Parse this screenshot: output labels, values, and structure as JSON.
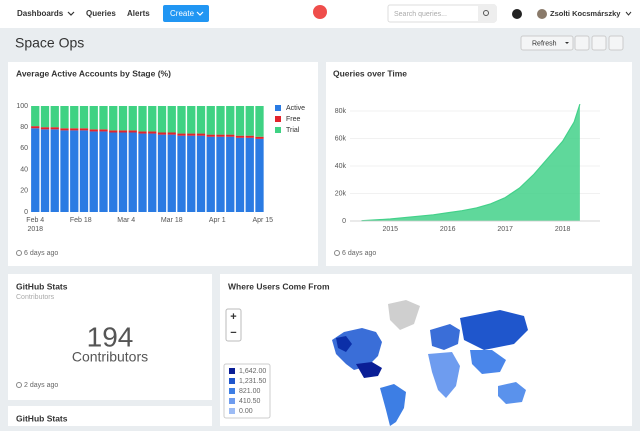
{
  "nav": {
    "items": [
      "Dashboards",
      "Queries",
      "Alerts"
    ],
    "create": "Create",
    "search_placeholder": "Search queries...",
    "user": "Zsolti Kocsmárszky"
  },
  "dashboard": {
    "title": "Space Ops",
    "refresh": "Refresh"
  },
  "chart_data": [
    {
      "type": "bar",
      "stacked": true,
      "title": "Average Active Accounts by Stage (%)",
      "x": [
        "2018-02-04",
        "2018-02-07",
        "2018-02-10",
        "2018-02-13",
        "2018-02-16",
        "2018-02-19",
        "2018-02-22",
        "2018-02-25",
        "2018-02-28",
        "2018-03-03",
        "2018-03-06",
        "2018-03-09",
        "2018-03-12",
        "2018-03-15",
        "2018-03-18",
        "2018-03-21",
        "2018-03-24",
        "2018-03-27",
        "2018-03-30",
        "2018-04-02",
        "2018-04-05",
        "2018-04-08",
        "2018-04-11",
        "2018-04-14"
      ],
      "series": [
        {
          "name": "Active",
          "color": "#2a7be3",
          "values": [
            79,
            78,
            78,
            77,
            77,
            77,
            76,
            76,
            75,
            75,
            75,
            74,
            74,
            73,
            73,
            72,
            72,
            72,
            71,
            71,
            71,
            70,
            70,
            69
          ]
        },
        {
          "name": "Free",
          "color": "#e3232c",
          "values": [
            2,
            2,
            2,
            2,
            2,
            2,
            2,
            2,
            2,
            2,
            2,
            2,
            2,
            2,
            2,
            2,
            2,
            2,
            2,
            2,
            2,
            2,
            2,
            2
          ]
        },
        {
          "name": "Trial",
          "color": "#3fd283",
          "values": [
            19,
            20,
            20,
            21,
            21,
            21,
            22,
            22,
            23,
            23,
            23,
            24,
            24,
            25,
            25,
            26,
            26,
            26,
            27,
            27,
            27,
            28,
            28,
            29
          ]
        }
      ],
      "xlim": [
        "2018-02-03",
        "2018-04-16"
      ],
      "xticks": [
        {
          "value": "2018-02-04",
          "label": "Feb 4"
        },
        {
          "value": "2018-02-18",
          "label": "Feb 18"
        },
        {
          "value": "2018-03-04",
          "label": "Mar 4"
        },
        {
          "value": "2018-03-18",
          "label": "Mar 18"
        },
        {
          "value": "2018-04-01",
          "label": "Apr 1"
        },
        {
          "value": "2018-04-15",
          "label": "Apr 15"
        }
      ],
      "x_sublabel": "2018",
      "ylim": [
        0,
        100
      ],
      "yticks": [
        0,
        20,
        40,
        60,
        80,
        100
      ],
      "grid": false,
      "legend": "right"
    },
    {
      "type": "area",
      "title": "Queries over Time",
      "color": "#43d18a",
      "x": [
        2014.5,
        2014.75,
        2015,
        2015.25,
        2015.5,
        2015.75,
        2016,
        2016.25,
        2016.5,
        2016.75,
        2017,
        2017.25,
        2017.5,
        2017.75,
        2018,
        2018.2,
        2018.3
      ],
      "values": [
        200,
        800,
        1500,
        2500,
        3500,
        4500,
        6000,
        7500,
        9500,
        12500,
        17000,
        24000,
        34000,
        46000,
        58000,
        72000,
        85000
      ],
      "xlim": [
        2014.3,
        2018.65
      ],
      "xticks": [
        2015,
        2016,
        2017,
        2018
      ],
      "ylim": [
        0,
        88000
      ],
      "yticks": [
        0,
        {
          "value": 20000,
          "label": "20k"
        },
        {
          "value": 40000,
          "label": "40k"
        },
        {
          "value": 60000,
          "label": "60k"
        },
        {
          "value": 80000,
          "label": "80k"
        }
      ],
      "grid": true
    }
  ],
  "widgets": [
    {
      "updated": "6 days ago"
    },
    {
      "updated": "6 days ago"
    },
    {
      "title": "GitHub Stats",
      "subtitle": "Contributors",
      "counter": 194,
      "counter_label": "Contributors",
      "updated": "2 days ago"
    },
    {
      "title": "Where Users Come From",
      "zoom_in": "+",
      "zoom_out": "−",
      "legend": [
        "1,642.00",
        "1,231.50",
        "821.00",
        "410.50",
        "0.00"
      ]
    },
    {
      "title": "GitHub Stats"
    }
  ]
}
